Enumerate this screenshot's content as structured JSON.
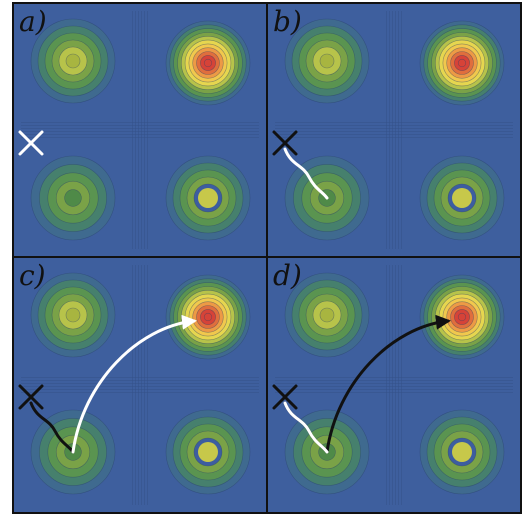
{
  "figure": {
    "background": "#3e5f9e",
    "border_color": "#111111",
    "ramp_colors": [
      "#3d5da0",
      "#3f6a8f",
      "#46806d",
      "#5a9450",
      "#7aa247",
      "#b7c34a",
      "#e6d64f",
      "#f1c84d",
      "#ed9a45",
      "#e06e3d",
      "#d64338"
    ],
    "panels": [
      {
        "id": "a",
        "label": "a)",
        "peaks": [
          {
            "level": 5,
            "inner": "#a8b540"
          },
          {
            "level": 10,
            "inner": "#d64338"
          },
          {
            "level": 4,
            "inner": "#4f8a48"
          },
          {
            "level": 5,
            "inner": "#c7c84a",
            "center_override": "#c7c84a",
            "ring_override": "#3d5da0"
          }
        ],
        "marker": {
          "type": "cross",
          "color": "#ffffff"
        },
        "paths": []
      },
      {
        "id": "b",
        "label": "b)",
        "peaks": [
          {
            "level": 5,
            "inner": "#a8b540"
          },
          {
            "level": 10,
            "inner": "#d64338"
          },
          {
            "level": 4,
            "inner": "#4f8a48"
          },
          {
            "level": 5,
            "inner": "#c7c84a",
            "center_override": "#c7c84a",
            "ring_override": "#3d5da0"
          }
        ],
        "marker": {
          "type": "cross",
          "color": "#111111"
        },
        "paths": [
          {
            "color": "#ffffff",
            "arrow": false
          }
        ]
      },
      {
        "id": "c",
        "label": "c)",
        "peaks": [
          {
            "level": 5,
            "inner": "#a8b540"
          },
          {
            "level": 10,
            "inner": "#d64338"
          },
          {
            "level": 4,
            "inner": "#4f8a48"
          },
          {
            "level": 5,
            "inner": "#c7c84a",
            "center_override": "#c7c84a",
            "ring_override": "#3d5da0"
          }
        ],
        "marker": {
          "type": "cross",
          "color": "#111111"
        },
        "paths": [
          {
            "color": "#111111",
            "arrow": false
          },
          {
            "color": "#ffffff",
            "arrow": true
          }
        ]
      },
      {
        "id": "d",
        "label": "d)",
        "peaks": [
          {
            "level": 5,
            "inner": "#a8b540"
          },
          {
            "level": 10,
            "inner": "#d64338"
          },
          {
            "level": 4,
            "inner": "#4f8a48"
          },
          {
            "level": 5,
            "inner": "#c7c84a",
            "center_override": "#c7c84a",
            "ring_override": "#3d5da0"
          }
        ],
        "marker": {
          "type": "cross",
          "color": "#111111"
        },
        "paths": [
          {
            "color": "#111111",
            "arrow": false
          },
          {
            "color": "#111111",
            "arrow": true
          },
          {
            "color": "#ffffff",
            "arrow": false
          }
        ]
      }
    ]
  }
}
